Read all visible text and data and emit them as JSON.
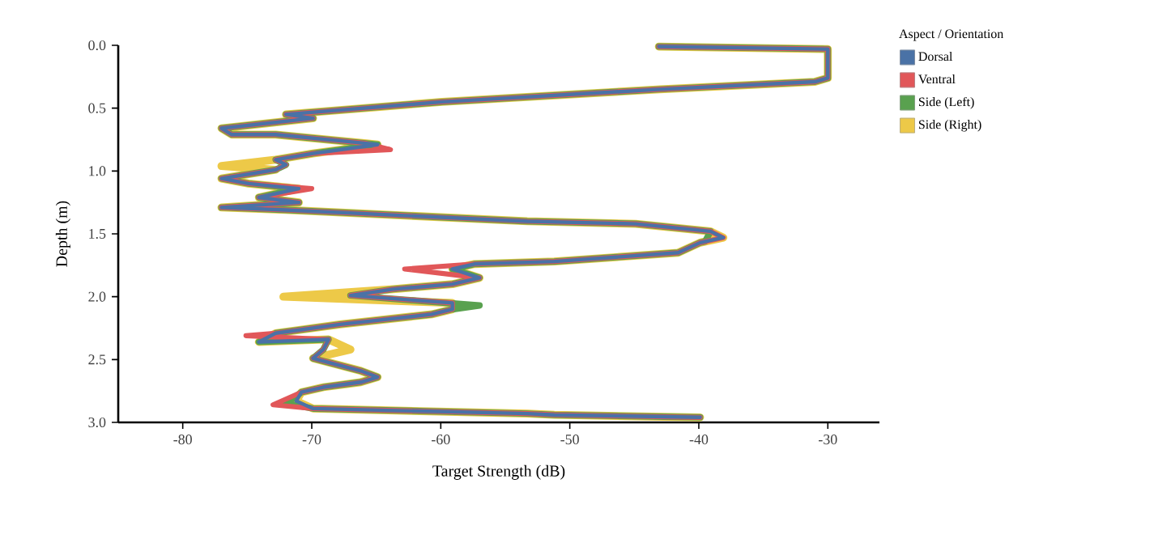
{
  "chart_data": {
    "type": "line",
    "xlabel": "Target Strength (dB)",
    "ylabel": "Depth (m)",
    "legend_title": "Aspect / Orientation",
    "legend": "top right",
    "marker": "none",
    "line_style": "solid",
    "grid": false,
    "xlim": [
      -85,
      -26
    ],
    "xticks": [
      -80,
      -70,
      -60,
      -50,
      -40,
      -30
    ],
    "ylim": [
      3.0,
      0
    ],
    "yticks": [
      {
        "value": 0,
        "label": "0.0"
      },
      {
        "value": 0.5,
        "label": "0.5"
      },
      {
        "value": 1.0,
        "label": "1.0"
      },
      {
        "value": 1.5,
        "label": "1.5"
      },
      {
        "value": 2.0,
        "label": "2.0"
      },
      {
        "value": 2.5,
        "label": "2.5"
      },
      {
        "value": 3.0,
        "label": "3.0"
      }
    ],
    "series": [
      {
        "name": "Dorsal",
        "color": "#4a72a6",
        "x": [
          -43.1,
          -30.0,
          -30.0,
          -31.0,
          -43.0,
          -59.9,
          -72.0,
          -69.9,
          -77.0,
          -76.2,
          -72.8,
          -65.8,
          -64.9,
          -69.9,
          -72.8,
          -72.0,
          -72.8,
          -77.0,
          -74.9,
          -71.0,
          -74.1,
          -71.0,
          -77.0,
          -72.0,
          -53.3,
          -44.9,
          -39.1,
          -38.1,
          -39.9,
          -41.6,
          -51.2,
          -57.4,
          -59.1,
          -57.0,
          -59.1,
          -63.7,
          -67.0,
          -59.1,
          -59.1,
          -60.7,
          -67.8,
          -72.8,
          -74.1,
          -68.7,
          -69.1,
          -69.9,
          -66.2,
          -64.9,
          -66.2,
          -69.1,
          -70.8,
          -71.2,
          -69.9,
          -53.3,
          -51.2,
          -39.9
        ],
        "values": [
          0.01,
          0.03,
          0.26,
          0.29,
          0.35,
          0.45,
          0.55,
          0.58,
          0.66,
          0.71,
          0.71,
          0.78,
          0.79,
          0.86,
          0.91,
          0.95,
          0.99,
          1.06,
          1.1,
          1.14,
          1.21,
          1.25,
          1.29,
          1.31,
          1.4,
          1.42,
          1.48,
          1.53,
          1.57,
          1.65,
          1.72,
          1.74,
          1.78,
          1.85,
          1.9,
          1.94,
          1.99,
          2.05,
          2.1,
          2.14,
          2.22,
          2.29,
          2.36,
          2.34,
          2.42,
          2.49,
          2.59,
          2.64,
          2.68,
          2.72,
          2.76,
          2.83,
          2.89,
          2.93,
          2.94,
          2.96
        ]
      },
      {
        "name": "Ventral",
        "color": "#e15759",
        "x": [
          -43.1,
          -30.0,
          -30.0,
          -31.0,
          -43.0,
          -59.9,
          -72.0,
          -69.9,
          -77.0,
          -76.2,
          -72.8,
          -65.8,
          -63.9,
          -69.9,
          -72.8,
          -72.0,
          -72.8,
          -77.0,
          -74.9,
          -70.0,
          -74.1,
          -71.0,
          -77.0,
          -72.0,
          -53.3,
          -44.9,
          -39.1,
          -38.1,
          -39.9,
          -41.6,
          -51.2,
          -57.4,
          -62.8,
          -57.0,
          -59.1,
          -63.7,
          -67.0,
          -59.1,
          -59.1,
          -60.7,
          -67.8,
          -72.8,
          -75.1,
          -68.7,
          -69.1,
          -69.9,
          -66.2,
          -64.9,
          -66.2,
          -69.1,
          -70.8,
          -73.0,
          -69.9,
          -53.3,
          -51.2,
          -39.9
        ],
        "values": [
          0.01,
          0.03,
          0.26,
          0.29,
          0.35,
          0.45,
          0.55,
          0.58,
          0.66,
          0.71,
          0.71,
          0.78,
          0.83,
          0.86,
          0.91,
          0.95,
          0.99,
          1.06,
          1.1,
          1.14,
          1.21,
          1.25,
          1.29,
          1.31,
          1.4,
          1.42,
          1.48,
          1.53,
          1.57,
          1.65,
          1.72,
          1.74,
          1.78,
          1.85,
          1.9,
          1.94,
          1.99,
          2.05,
          2.1,
          2.14,
          2.22,
          2.29,
          2.31,
          2.34,
          2.42,
          2.49,
          2.59,
          2.64,
          2.68,
          2.72,
          2.76,
          2.86,
          2.89,
          2.93,
          2.94,
          2.96
        ]
      },
      {
        "name": "Side (Left)",
        "color": "#59a14f",
        "x": [
          -43.1,
          -30.0,
          -30.0,
          -31.0,
          -43.0,
          -59.9,
          -72.0,
          -69.9,
          -77.0,
          -76.2,
          -72.8,
          -65.8,
          -64.9,
          -69.9,
          -72.8,
          -72.0,
          -72.8,
          -77.0,
          -74.9,
          -71.0,
          -74.1,
          -71.0,
          -77.0,
          -72.0,
          -53.3,
          -44.9,
          -39.1,
          -39.5,
          -39.9,
          -41.6,
          -51.2,
          -57.4,
          -59.1,
          -57.0,
          -59.1,
          -63.7,
          -67.0,
          -57.0,
          -59.1,
          -60.7,
          -67.8,
          -72.8,
          -74.1,
          -68.7,
          -69.1,
          -69.9,
          -66.2,
          -64.9,
          -66.2,
          -69.1,
          -70.8,
          -72.0,
          -69.9,
          -53.3,
          -51.2,
          -39.9
        ],
        "values": [
          0.01,
          0.03,
          0.26,
          0.29,
          0.35,
          0.45,
          0.55,
          0.58,
          0.66,
          0.71,
          0.71,
          0.78,
          0.79,
          0.86,
          0.91,
          0.95,
          0.99,
          1.06,
          1.1,
          1.14,
          1.21,
          1.25,
          1.29,
          1.31,
          1.4,
          1.42,
          1.48,
          1.56,
          1.57,
          1.65,
          1.72,
          1.74,
          1.78,
          1.85,
          1.9,
          1.94,
          1.99,
          2.07,
          2.1,
          2.14,
          2.22,
          2.29,
          2.36,
          2.34,
          2.42,
          2.49,
          2.59,
          2.64,
          2.68,
          2.72,
          2.76,
          2.85,
          2.89,
          2.93,
          2.94,
          2.96
        ]
      },
      {
        "name": "Side (Right)",
        "color": "#edc948",
        "x": [
          -43.1,
          -30.0,
          -30.0,
          -31.0,
          -43.0,
          -59.9,
          -72.0,
          -69.9,
          -77.0,
          -76.2,
          -72.8,
          -65.8,
          -64.9,
          -69.9,
          -72.8,
          -77.0,
          -72.8,
          -77.0,
          -74.9,
          -71.0,
          -74.1,
          -71.0,
          -77.0,
          -72.0,
          -53.3,
          -44.9,
          -39.1,
          -38.1,
          -39.9,
          -41.6,
          -51.2,
          -57.4,
          -59.1,
          -57.0,
          -59.1,
          -63.7,
          -72.2,
          -59.1,
          -59.1,
          -60.7,
          -67.8,
          -72.8,
          -74.1,
          -68.7,
          -67.0,
          -69.9,
          -66.2,
          -64.9,
          -66.2,
          -69.1,
          -70.8,
          -71.2,
          -69.9,
          -53.3,
          -51.2,
          -39.9
        ],
        "values": [
          0.01,
          0.03,
          0.26,
          0.29,
          0.35,
          0.45,
          0.55,
          0.58,
          0.66,
          0.71,
          0.71,
          0.78,
          0.79,
          0.86,
          0.91,
          0.96,
          0.99,
          1.06,
          1.1,
          1.14,
          1.21,
          1.25,
          1.29,
          1.31,
          1.4,
          1.42,
          1.48,
          1.53,
          1.57,
          1.65,
          1.72,
          1.74,
          1.78,
          1.85,
          1.9,
          1.94,
          2.0,
          2.05,
          2.1,
          2.14,
          2.22,
          2.29,
          2.36,
          2.34,
          2.42,
          2.49,
          2.59,
          2.64,
          2.68,
          2.72,
          2.76,
          2.83,
          2.89,
          2.93,
          2.94,
          2.96
        ]
      }
    ]
  }
}
